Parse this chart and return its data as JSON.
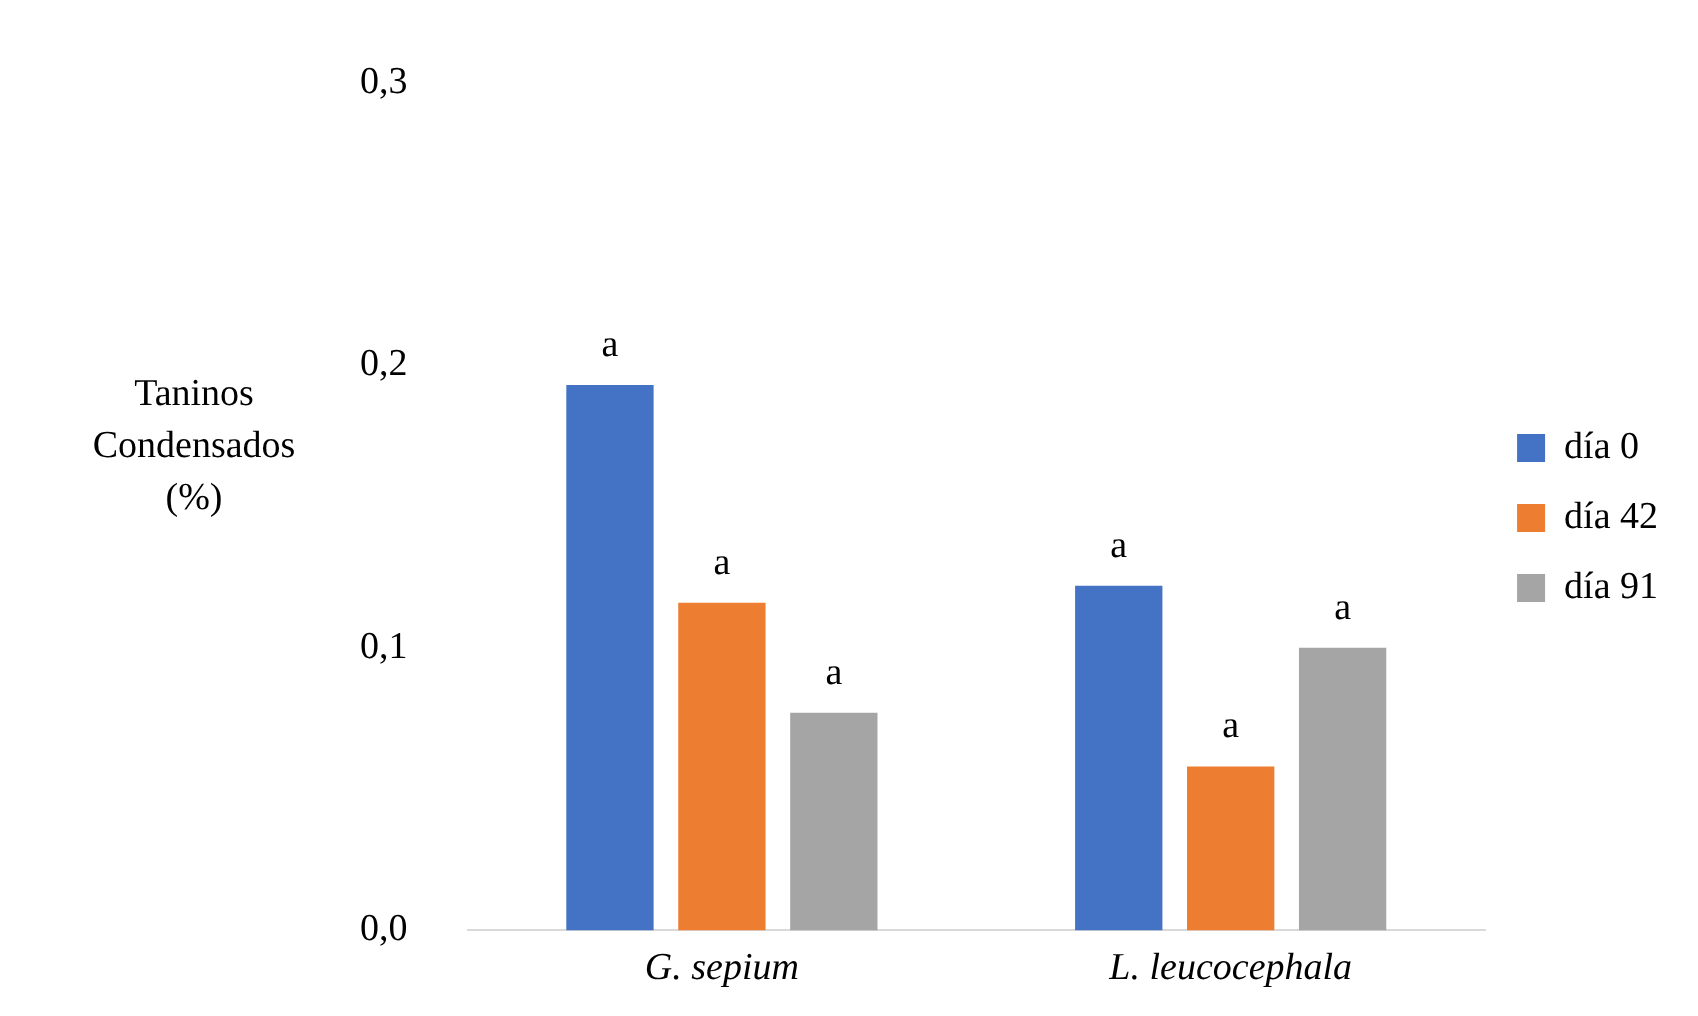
{
  "chart_data": {
    "type": "bar",
    "ylabel": "Taninos Condensados (%)",
    "categories": [
      "G. sepium",
      "L. leucocephala"
    ],
    "series": [
      {
        "name": "día 0",
        "color": "#4472c4",
        "values": [
          0.193,
          0.122
        ],
        "value_labels": [
          "a",
          "a"
        ]
      },
      {
        "name": "día 42",
        "color": "#ed7d31",
        "values": [
          0.116,
          0.058
        ],
        "value_labels": [
          "a",
          "a"
        ]
      },
      {
        "name": "día 91",
        "color": "#a5a5a5",
        "values": [
          0.077,
          0.1
        ],
        "value_labels": [
          "a",
          "a"
        ]
      }
    ],
    "ylim": [
      0,
      0.3
    ],
    "yticks": [
      {
        "value": 0,
        "label": "0,0"
      },
      {
        "value": 0.1,
        "label": "0,1"
      },
      {
        "value": 0.2,
        "label": "0,2"
      },
      {
        "value": 0.3,
        "label": "0,3"
      }
    ],
    "grid": false,
    "legend": "right"
  }
}
